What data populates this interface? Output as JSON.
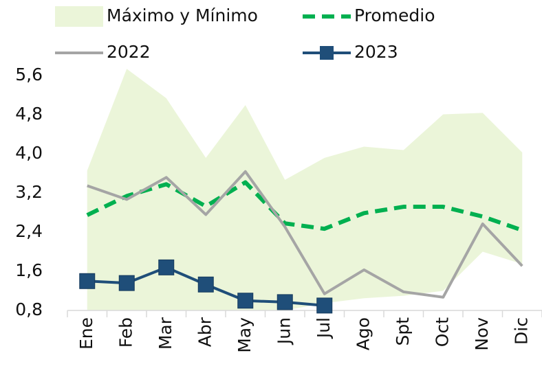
{
  "chart_data": {
    "type": "line",
    "categories": [
      "Ene",
      "Feb",
      "Mar",
      "Abr",
      "May",
      "Jun",
      "Jul",
      "Ago",
      "Spt",
      "Oct",
      "Nov",
      "Dic"
    ],
    "series": [
      {
        "name": "Máximo y Mínimo",
        "color": "#ebf5d9",
        "kind": "area",
        "values": [
          3.66,
          5.74,
          5.14,
          3.92,
          5.0,
          3.47,
          3.92,
          4.15,
          4.08,
          4.81,
          4.84,
          4.03
        ],
        "low": [
          0.8,
          0.8,
          0.8,
          0.8,
          0.8,
          0.8,
          0.95,
          1.05,
          1.1,
          1.2,
          2.0,
          1.75
        ]
      },
      {
        "name": "Promedio",
        "color": "#00b050",
        "kind": "dashed",
        "values": [
          2.75,
          3.14,
          3.38,
          2.93,
          3.42,
          2.58,
          2.47,
          2.79,
          2.92,
          2.92,
          2.72,
          2.44
        ]
      },
      {
        "name": "2022",
        "color": "#a5a5a5",
        "kind": "line",
        "values": [
          3.35,
          3.07,
          3.52,
          2.76,
          3.64,
          2.51,
          1.14,
          1.63,
          1.18,
          1.07,
          2.57,
          1.71
        ]
      },
      {
        "name": "2023",
        "color": "#1f4e79",
        "kind": "marker",
        "values": [
          1.4,
          1.36,
          1.68,
          1.33,
          1.0,
          0.97,
          0.9,
          null,
          null,
          null,
          null,
          null
        ]
      }
    ],
    "ylim": [
      0.8,
      5.8
    ],
    "yticks": [
      {
        "value": 0.8,
        "label": "0,8"
      },
      {
        "value": 1.6,
        "label": "1,6"
      },
      {
        "value": 2.4,
        "label": "2,4"
      },
      {
        "value": 3.2,
        "label": "3,2"
      },
      {
        "value": 4.0,
        "label": "4,0"
      },
      {
        "value": 4.8,
        "label": "4,8"
      },
      {
        "value": 5.6,
        "label": "5,6"
      }
    ],
    "legend": "top"
  }
}
